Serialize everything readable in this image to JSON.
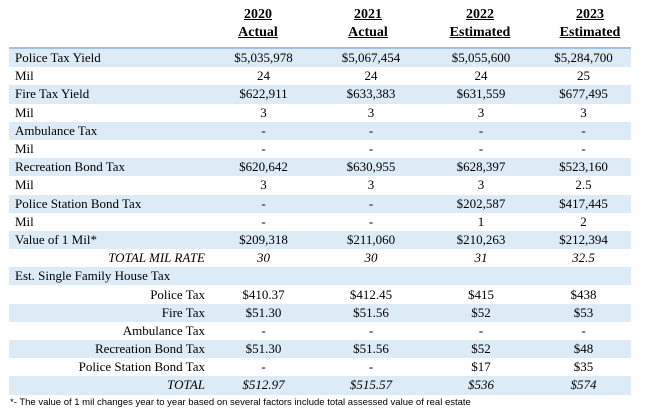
{
  "headers": [
    {
      "year": "2020",
      "sub": "Actual"
    },
    {
      "year": "2021",
      "sub": "Actual"
    },
    {
      "year": "2022",
      "sub": "Estimated"
    },
    {
      "year": "2023",
      "sub": "Estimated"
    }
  ],
  "rows": [
    {
      "label": "Police Tax Yield",
      "vals": [
        "$5,035,978",
        "$5,067,454",
        "$5,055,600",
        "$5,284,700"
      ]
    },
    {
      "label": "Mil",
      "vals": [
        "24",
        "24",
        "24",
        "25"
      ]
    },
    {
      "label": "Fire Tax Yield",
      "vals": [
        "$622,911",
        "$633,383",
        "$631,559",
        "$677,495"
      ]
    },
    {
      "label": "Mil",
      "vals": [
        "3",
        "3",
        "3",
        "3"
      ]
    },
    {
      "label": "Ambulance Tax",
      "vals": [
        "-",
        "-",
        "-",
        "-"
      ]
    },
    {
      "label": "Mil",
      "vals": [
        "-",
        "-",
        "-",
        "-"
      ]
    },
    {
      "label": "Recreation Bond Tax",
      "vals": [
        "$620,642",
        "$630,955",
        "$628,397",
        "$523,160"
      ]
    },
    {
      "label": "Mil",
      "vals": [
        "3",
        "3",
        "3",
        "2.5"
      ]
    },
    {
      "label": "Police Station Bond Tax",
      "vals": [
        "-",
        "-",
        "$202,587",
        "$417,445"
      ]
    },
    {
      "label": "Mil",
      "vals": [
        "-",
        "-",
        "1",
        "2"
      ]
    },
    {
      "label": "Value of 1 Mil*",
      "vals": [
        "$209,318",
        "$211,060",
        "$210,263",
        "$212,394"
      ]
    },
    {
      "label": "TOTAL MIL RATE",
      "vals": [
        "30",
        "30",
        "31",
        "32.5"
      ]
    },
    {
      "label": "Est. Single Family House Tax",
      "vals": [
        "",
        "",
        "",
        ""
      ]
    },
    {
      "label": "Police Tax",
      "vals": [
        "$410.37",
        "$412.45",
        "$415",
        "$438"
      ]
    },
    {
      "label": "Fire Tax",
      "vals": [
        "$51.30",
        "$51.56",
        "$52",
        "$53"
      ]
    },
    {
      "label": "Ambulance Tax",
      "vals": [
        "-",
        "-",
        "-",
        "-"
      ]
    },
    {
      "label": "Recreation Bond Tax",
      "vals": [
        "$51.30",
        "$51.56",
        "$52",
        "$48"
      ]
    },
    {
      "label": "Police Station Bond Tax",
      "vals": [
        "-",
        "-",
        "$17",
        "$35"
      ]
    },
    {
      "label": "TOTAL",
      "vals": [
        "$512.97",
        "$515.57",
        "$536",
        "$574"
      ]
    }
  ],
  "footnote": "*- The value of 1 mil changes year to year based on several factors include total assessed value of real estate"
}
